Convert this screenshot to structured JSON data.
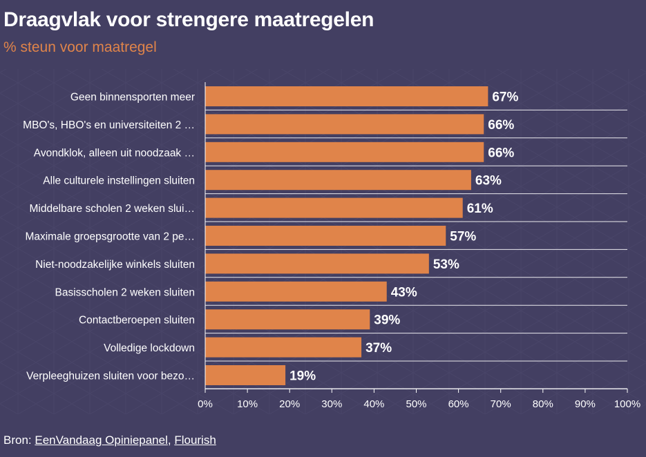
{
  "title": "Draagvlak voor strengere maatregelen",
  "subtitle": "% steun voor maatregel",
  "source": {
    "prefix": "Bron: ",
    "link1": "EenVandaag Opiniepanel",
    "separator": ", ",
    "link2": "Flourish"
  },
  "colors": {
    "bar": "#e0844a",
    "background": "#433f62",
    "subtitle": "#e0844a"
  },
  "chart_data": {
    "type": "bar",
    "orientation": "horizontal",
    "title": "Draagvlak voor strengere maatregelen",
    "subtitle": "% steun voor maatregel",
    "xlabel": "",
    "ylabel": "",
    "xlim": [
      0,
      100
    ],
    "ticks": [
      0,
      10,
      20,
      30,
      40,
      50,
      60,
      70,
      80,
      90,
      100
    ],
    "tick_labels": [
      "0%",
      "10%",
      "20%",
      "30%",
      "40%",
      "50%",
      "60%",
      "70%",
      "80%",
      "90%",
      "100%"
    ],
    "categories": [
      "Geen binnensporten meer",
      "MBO's, HBO's en universiteiten 2 …",
      "Avondklok, alleen uit noodzaak …",
      "Alle culturele instellingen sluiten",
      "Middelbare scholen 2 weken slui…",
      "Maximale groepsgrootte van 2 pe…",
      "Niet-noodzakelijke winkels sluiten",
      "Basisscholen 2 weken sluiten",
      "Contactberoepen sluiten",
      "Volledige lockdown",
      "Verpleeghuizen sluiten voor bezo…"
    ],
    "values": [
      67,
      66,
      66,
      63,
      61,
      57,
      53,
      43,
      39,
      37,
      19
    ],
    "value_labels": [
      "67%",
      "66%",
      "66%",
      "63%",
      "61%",
      "57%",
      "53%",
      "43%",
      "39%",
      "37%",
      "19%"
    ]
  }
}
